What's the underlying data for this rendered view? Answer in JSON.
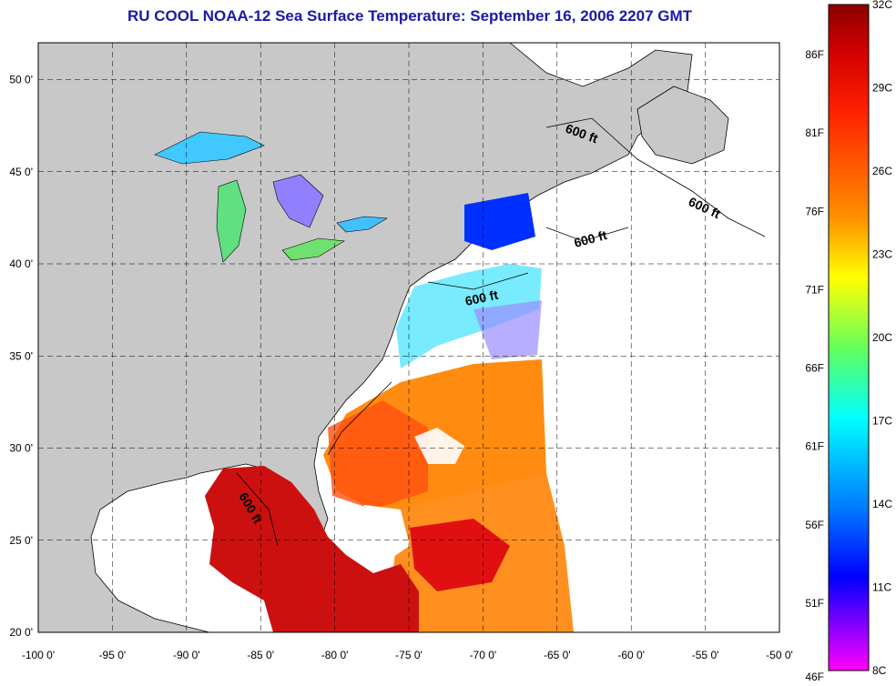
{
  "title": "RU COOL  NOAA-12  Sea Surface Temperature:  September 16, 2006 2207 GMT",
  "map": {
    "lon_range": [
      -100,
      -50
    ],
    "lat_range": [
      20,
      52
    ],
    "lon_ticks": [
      "-100 0'",
      "-95 0'",
      "-90 0'",
      "-85 0'",
      "-80 0'",
      "-75 0'",
      "-70 0'",
      "-65 0'",
      "-60 0'",
      "-55 0'",
      "-50 0'"
    ],
    "lat_ticks": [
      "20 0'",
      "25 0'",
      "30 0'",
      "35 0'",
      "40 0'",
      "45 0'",
      "50 0'"
    ],
    "contour_label": "600 ft",
    "colors": {
      "land": "#c8c8c8",
      "ocean_nodata": "#ffffff",
      "grid": "#000000"
    }
  },
  "colorbar": {
    "c_labels": [
      "32C",
      "29C",
      "26C",
      "23C",
      "20C",
      "17C",
      "14C",
      "11C",
      "8C"
    ],
    "f_labels": [
      "86F",
      "81F",
      "76F",
      "71F",
      "66F",
      "61F",
      "56F",
      "51F",
      "46F"
    ],
    "colors": [
      "#8b0000",
      "#ff0000",
      "#ff8000",
      "#ffff00",
      "#00ff80",
      "#00ffff",
      "#0080ff",
      "#0000ff",
      "#8000ff",
      "#ff00ff"
    ]
  }
}
